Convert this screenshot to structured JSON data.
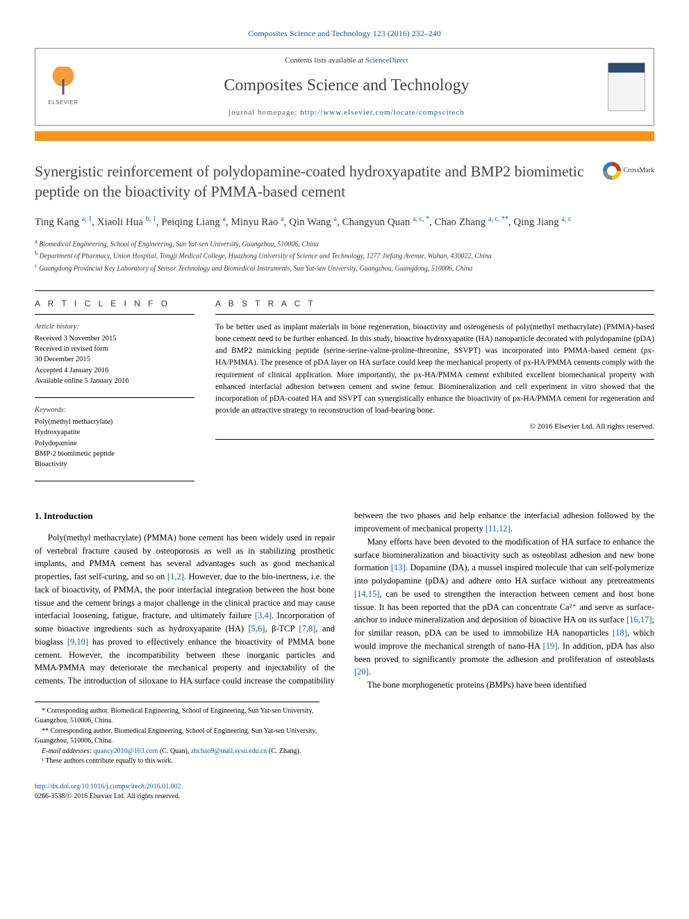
{
  "header": {
    "citation": "Composites Science and Technology 123 (2016) 232–240",
    "contents_prefix": "Contents lists available at ",
    "contents_link": "ScienceDirect",
    "journal": "Composites Science and Technology",
    "homepage_prefix": "journal homepage: ",
    "homepage_url": "http://www.elsevier.com/locate/compscitech",
    "publisher": "ELSEVIER"
  },
  "crossmark": {
    "label": "CrossMark"
  },
  "title": "Synergistic reinforcement of polydopamine-coated hydroxyapatite and BMP2 biomimetic peptide on the bioactivity of PMMA-based cement",
  "authors_html": "Ting Kang <sup>a, 1</sup>, Xiaoli Hua <sup>b, 1</sup>, Peiqing Liang <sup>a</sup>, Minyu Rao <sup>a</sup>, Qin Wang <sup>a</sup>, Changyun Quan <sup>a, c, *</sup>, Chao Zhang <sup>a, c, **</sup>, Qing Jiang <sup>a, c</sup>",
  "affiliations": {
    "a": "Biomedical Engineering, School of Engineering, Sun Yat-sen University, Guangzhou, 510006, China",
    "b": "Department of Pharmacy, Union Hospital, Tongji Medical College, Huazhong University of Science and Technology, 1277 Jiefang Avenue, Wuhan, 430022, China",
    "c": "Guangdong Provincial Key Laboratory of Sensor Technology and Biomedical Instruments, Sun Yat-sen University, Guangzhou, Guangdong, 510006, China"
  },
  "article_info": {
    "heading": "A R T I C L E   I N F O",
    "history_label": "Article history:",
    "history": [
      "Received 3 November 2015",
      "Received in revised form",
      "30 December 2015",
      "Accepted 4 January 2016",
      "Available online 5 January 2016"
    ],
    "keywords_label": "Keywords:",
    "keywords": [
      "Poly(methyl methacrylate)",
      "Hydroxyapatite",
      "Polydopamine",
      "BMP-2 biomimetic peptide",
      "Bioactivity"
    ]
  },
  "abstract": {
    "heading": "A B S T R A C T",
    "text": "To be better used as implant materials in bone regeneration, bioactivity and osteogenesis of poly(methyl methacrylate) (PMMA)-based bone cement need to be further enhanced. In this study, bioactive hydroxyapatite (HA) nanoparticle decorated with polydopamine (pDA) and BMP2 mimicking peptide (serine-serine-valine-proline-threonine, SSVPT) was incorporated into PMMA-based cement (px-HA/PMMA). The presence of pDA layer on HA surface could keep the mechanical property of px-HA/PMMA cements comply with the requirement of clinical application. More importantly, the px-HA/PMMA cement exhibited excellent biomechanical property with enhanced interfacial adhesion between cement and swine femur. Biomineralization and cell experiment in vitro showed that the incorporation of pDA-coated HA and SSVPT can synergistically enhance the bioactivity of px-HA/PMMA cement for regeneration and provide an attractive strategy to reconstruction of load-bearing bone.",
    "copyright": "© 2016 Elsevier Ltd. All rights reserved."
  },
  "body": {
    "heading": "1. Introduction",
    "para1_a": "Poly(methyl methacrylate) (PMMA) bone cement has been widely used in repair of vertebral fracture caused by osteoporosis as well as in stabilizing prosthetic implants, and PMMA cement has several advantages such as good mechanical properties, fast self-curing, and so on ",
    "ref1": "[1,2]",
    "para1_b": ". However, due to the bio-inertness, i.e. the lack of bioactivity, of PMMA, the poor interfacial integration between the host bone tissue and the cement brings a major challenge in the clinical practice and may cause interfacial loosening, fatigue, fracture, and ultimately failure ",
    "ref2": "[3,4]",
    "para1_c": ". Incorporation of some bioactive ingredients such as hydroxyapatite (HA) ",
    "ref3": "[5,6]",
    "para1_d": ", β-TCP ",
    "ref4": "[7,8]",
    "para1_e": ", and bioglass ",
    "ref5": "[9,10]",
    "para1_f": " has proved to effectively enhance the bioactivity",
    "para2_a": "of PMMA bone cement. However, the incompatibility between these inorganic particles and MMA/PMMA may deteriorate the mechanical property and injectability of the cements. The introduction of siloxane to HA surface could increase the compatibility between the two phases and help enhance the interfacial adhesion followed by the improvement of mechanical property ",
    "ref6": "[11,12]",
    "para2_b": ".",
    "para3_a": "Many efforts have been devoted to the modification of HA surface to enhance the surface biomineralization and bioactivity such as osteoblast adhesion and new bone formation ",
    "ref7": "[13]",
    "para3_b": ". Dopamine (DA), a mussel inspired molecule that can self-polymerize into polydopamine (pDA) and adhere onto HA surface without any pretreatments ",
    "ref8": "[14,15]",
    "para3_c": ", can be used to strengthen the interaction between cement and host bone tissue. It has been reported that the pDA can concentrate Ca²⁺ and serve as surface-anchor to induce mineralization and deposition of bioactive HA on its surface ",
    "ref9": "[16,17]",
    "para3_d": "; for similar reason, pDA can be used to immobilize HA nanoparticles ",
    "ref10": "[18]",
    "para3_e": ", which would improve the mechanical strength of nano-HA ",
    "ref11": "[19]",
    "para3_f": ". In addition, pDA has also been proved to significantly promote the adhesion and proliferation of osteoblasts ",
    "ref12": "[20]",
    "para3_g": ".",
    "para4": "The bone morphogenetic proteins (BMPs) have been identified"
  },
  "footnotes": {
    "c1_label": "* Corresponding author. ",
    "c1_text": "Biomedical Engineering, School of Engineering, Sun Yat-sen University, Guangzhou, 510006, China.",
    "c2_label": "** Corresponding author. ",
    "c2_text": "Biomedical Engineering, School of Engineering, Sun Yat-sen University, Guangzhou, 510006, China.",
    "email_label": "E-mail addresses: ",
    "email1": "quancy2010@163.com",
    "email1_who": " (C. Quan), ",
    "email2": "zhchao9@mail.sysu.edu.cn",
    "email2_who": " (C. Zhang).",
    "equal": "¹ These authors contribute equally to this work."
  },
  "bottom": {
    "doi": "http://dx.doi.org/10.1016/j.compscitech.2016.01.002",
    "issn": "0266-3538/© 2016 Elsevier Ltd. All rights reserved."
  },
  "colors": {
    "link": "#1a5490",
    "accent": "#f7941e"
  }
}
